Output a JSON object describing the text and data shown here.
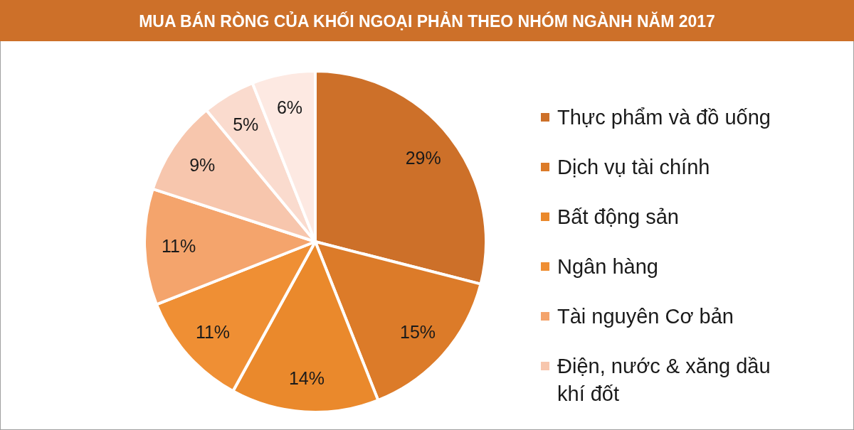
{
  "chart_data": {
    "type": "pie",
    "title": "MUA BÁN RÒNG CỦA KHỐI NGOẠI PHẢN THEO NHÓM NGÀNH NĂM 2017",
    "categories": [
      "Thực phẩm và đồ uống",
      "Dịch vụ tài chính",
      "Bất động sản",
      "Ngân hàng",
      "Tài nguyên Cơ bản",
      "Điện, nước & xăng dầu khí đốt",
      null,
      null
    ],
    "values": [
      29,
      15,
      14,
      11,
      11,
      9,
      5,
      6
    ],
    "colors": [
      "#cd7029",
      "#dc7b29",
      "#ea892c",
      "#ef8f34",
      "#f4a46c",
      "#f7c6ad",
      "#fadbce",
      "#fde9e2"
    ],
    "value_labels": [
      "29%",
      "15%",
      "14%",
      "11%",
      "11%",
      "9%",
      "5%",
      "6%"
    ],
    "legend": "right"
  }
}
